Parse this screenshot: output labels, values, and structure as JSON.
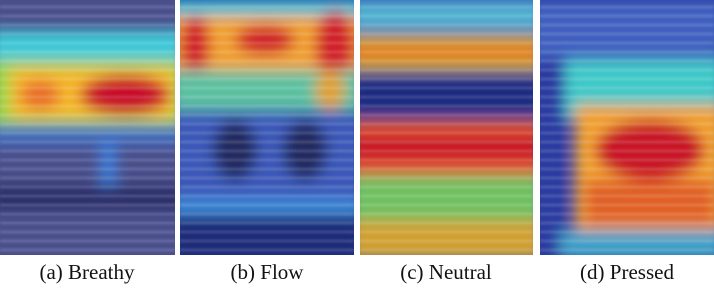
{
  "panels": [
    {
      "caption": "(a) Breathy"
    },
    {
      "caption": "(b) Flow"
    },
    {
      "caption": "(c) Neutral"
    },
    {
      "caption": "(d) Pressed"
    }
  ]
}
